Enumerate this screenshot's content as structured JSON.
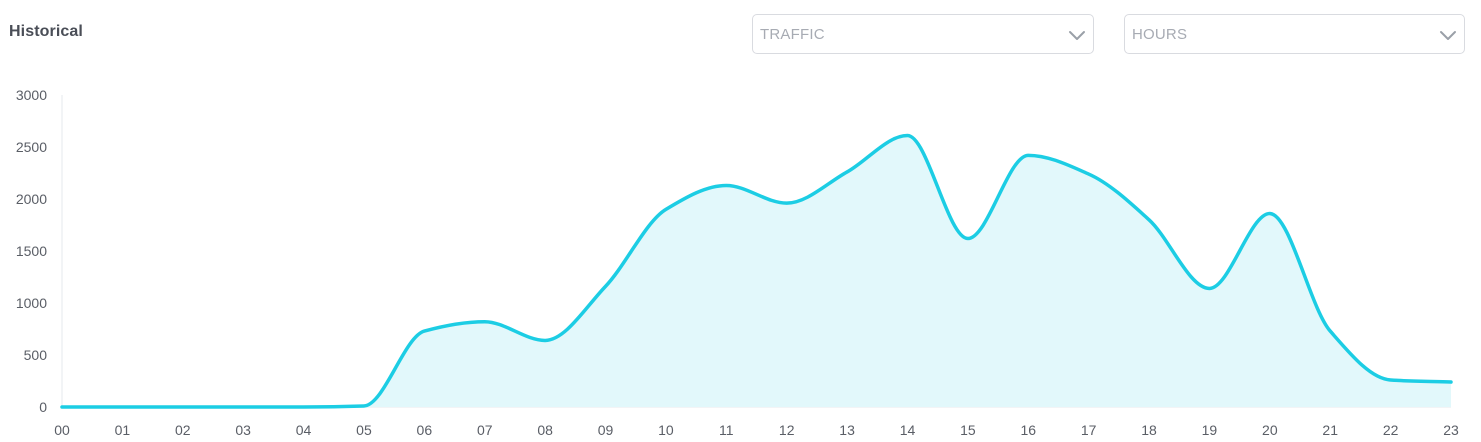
{
  "header": {
    "title": "Historical"
  },
  "filters": {
    "metric": {
      "selected": "TRAFFIC",
      "icon": "chevron-down-icon"
    },
    "period": {
      "selected": "HOURS",
      "icon": "chevron-down-icon"
    }
  },
  "colors": {
    "line": "#1ccde4",
    "area": "#e2f8fb",
    "axis": "#e6e8ec",
    "tick_text": "#5a5e66"
  },
  "chart_data": {
    "type": "area",
    "title": "",
    "xlabel": "",
    "ylabel": "",
    "grid": false,
    "ylim": [
      0,
      3000
    ],
    "yticks": [
      0,
      500,
      1000,
      1500,
      2000,
      2500,
      3000
    ],
    "categories": [
      "00",
      "01",
      "02",
      "03",
      "04",
      "05",
      "06",
      "07",
      "08",
      "09",
      "10",
      "11",
      "12",
      "13",
      "14",
      "15",
      "16",
      "17",
      "18",
      "19",
      "20",
      "21",
      "22",
      "23"
    ],
    "values": [
      0,
      0,
      0,
      0,
      0,
      10,
      730,
      820,
      640,
      1160,
      1900,
      2130,
      1960,
      2260,
      2610,
      1620,
      2420,
      2240,
      1800,
      1140,
      1860,
      730,
      260,
      240
    ]
  }
}
